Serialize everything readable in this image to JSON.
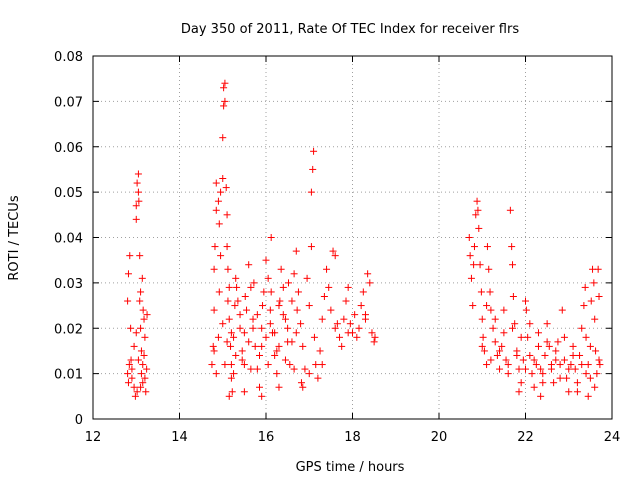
{
  "chart_data": {
    "type": "scatter",
    "title": "Day 350 of 2011, Rate Of TEC Index for receiver flrs",
    "xlabel": "GPS time / hours",
    "ylabel": "ROTI / TECUs",
    "xlim": [
      12,
      24
    ],
    "ylim": [
      0,
      0.08
    ],
    "xticks": [
      "12",
      "14",
      "16",
      "18",
      "20",
      "22",
      "24"
    ],
    "yticks": [
      "0",
      "0.01",
      "0.02",
      "0.03",
      "0.04",
      "0.05",
      "0.06",
      "0.07",
      "0.08"
    ],
    "grid": true,
    "marker": "+",
    "color": "#ff0000",
    "series": [
      {
        "name": "ROTI",
        "points": [
          [
            12.8,
            0.01
          ],
          [
            12.82,
            0.008
          ],
          [
            12.84,
            0.012
          ],
          [
            12.8,
            0.026
          ],
          [
            12.82,
            0.032
          ],
          [
            12.85,
            0.036
          ],
          [
            12.87,
            0.02
          ],
          [
            12.9,
            0.009
          ],
          [
            12.95,
            0.007
          ],
          [
            12.98,
            0.005
          ],
          [
            13.0,
            0.044
          ],
          [
            13.0,
            0.047
          ],
          [
            13.02,
            0.052
          ],
          [
            13.05,
            0.054
          ],
          [
            13.05,
            0.05
          ],
          [
            13.06,
            0.048
          ],
          [
            13.08,
            0.036
          ],
          [
            13.1,
            0.028
          ],
          [
            13.1,
            0.02
          ],
          [
            13.12,
            0.015
          ],
          [
            13.12,
            0.01
          ],
          [
            13.15,
            0.012
          ],
          [
            13.15,
            0.008
          ],
          [
            13.18,
            0.014
          ],
          [
            13.18,
            0.022
          ],
          [
            13.2,
            0.018
          ],
          [
            13.2,
            0.009
          ],
          [
            13.22,
            0.006
          ],
          [
            13.25,
            0.023
          ],
          [
            13.05,
            0.013
          ],
          [
            12.9,
            0.011
          ],
          [
            12.95,
            0.016
          ],
          [
            13.0,
            0.019
          ],
          [
            13.08,
            0.026
          ],
          [
            13.14,
            0.031
          ],
          [
            13.16,
            0.024
          ],
          [
            12.88,
            0.013
          ],
          [
            13.02,
            0.006
          ],
          [
            13.1,
            0.007
          ],
          [
            13.24,
            0.011
          ],
          [
            14.75,
            0.012
          ],
          [
            14.78,
            0.016
          ],
          [
            14.8,
            0.024
          ],
          [
            14.8,
            0.033
          ],
          [
            14.82,
            0.038
          ],
          [
            14.85,
            0.046
          ],
          [
            14.85,
            0.052
          ],
          [
            14.9,
            0.048
          ],
          [
            14.92,
            0.043
          ],
          [
            14.95,
            0.05
          ],
          [
            14.95,
            0.036
          ],
          [
            15.0,
            0.053
          ],
          [
            15.0,
            0.062
          ],
          [
            15.02,
            0.069
          ],
          [
            15.02,
            0.073
          ],
          [
            15.05,
            0.07
          ],
          [
            15.05,
            0.074
          ],
          [
            15.08,
            0.051
          ],
          [
            15.1,
            0.045
          ],
          [
            15.1,
            0.038
          ],
          [
            15.12,
            0.033
          ],
          [
            15.15,
            0.029
          ],
          [
            15.15,
            0.022
          ],
          [
            15.18,
            0.016
          ],
          [
            15.2,
            0.012
          ],
          [
            15.2,
            0.009
          ],
          [
            15.22,
            0.006
          ],
          [
            15.25,
            0.018
          ],
          [
            15.28,
            0.025
          ],
          [
            15.3,
            0.031
          ],
          [
            15.35,
            0.026
          ],
          [
            15.4,
            0.02
          ],
          [
            15.45,
            0.015
          ],
          [
            15.5,
            0.012
          ],
          [
            15.55,
            0.024
          ],
          [
            15.6,
            0.034
          ],
          [
            15.65,
            0.029
          ],
          [
            15.7,
            0.022
          ],
          [
            15.75,
            0.016
          ],
          [
            15.8,
            0.011
          ],
          [
            15.85,
            0.007
          ],
          [
            15.9,
            0.02
          ],
          [
            15.95,
            0.028
          ],
          [
            16.0,
            0.035
          ],
          [
            16.05,
            0.031
          ],
          [
            16.1,
            0.024
          ],
          [
            16.12,
            0.04
          ],
          [
            16.15,
            0.019
          ],
          [
            16.2,
            0.014
          ],
          [
            16.25,
            0.01
          ],
          [
            16.3,
            0.025
          ],
          [
            16.35,
            0.033
          ],
          [
            16.4,
            0.029
          ],
          [
            16.45,
            0.022
          ],
          [
            16.5,
            0.017
          ],
          [
            16.55,
            0.012
          ],
          [
            16.6,
            0.026
          ],
          [
            16.65,
            0.032
          ],
          [
            16.7,
            0.037
          ],
          [
            16.75,
            0.028
          ],
          [
            16.8,
            0.021
          ],
          [
            16.82,
            0.008
          ],
          [
            16.85,
            0.016
          ],
          [
            16.9,
            0.011
          ],
          [
            16.95,
            0.031
          ],
          [
            17.0,
            0.025
          ],
          [
            17.05,
            0.038
          ],
          [
            17.05,
            0.05
          ],
          [
            17.08,
            0.055
          ],
          [
            17.1,
            0.059
          ],
          [
            17.12,
            0.018
          ],
          [
            17.15,
            0.012
          ],
          [
            17.2,
            0.009
          ],
          [
            17.25,
            0.015
          ],
          [
            17.3,
            0.022
          ],
          [
            17.35,
            0.027
          ],
          [
            17.4,
            0.033
          ],
          [
            17.45,
            0.029
          ],
          [
            17.5,
            0.024
          ],
          [
            17.55,
            0.037
          ],
          [
            17.6,
            0.036
          ],
          [
            17.65,
            0.021
          ],
          [
            17.7,
            0.018
          ],
          [
            17.75,
            0.016
          ],
          [
            17.8,
            0.022
          ],
          [
            17.85,
            0.026
          ],
          [
            17.9,
            0.029
          ],
          [
            17.95,
            0.021
          ],
          [
            18.0,
            0.019
          ],
          [
            18.05,
            0.023
          ],
          [
            18.1,
            0.018
          ],
          [
            18.15,
            0.02
          ],
          [
            18.2,
            0.025
          ],
          [
            18.25,
            0.028
          ],
          [
            18.3,
            0.023
          ],
          [
            18.35,
            0.032
          ],
          [
            18.4,
            0.03
          ],
          [
            18.45,
            0.019
          ],
          [
            18.5,
            0.017
          ],
          [
            18.52,
            0.018
          ],
          [
            14.8,
            0.015
          ],
          [
            14.9,
            0.018
          ],
          [
            15.0,
            0.021
          ],
          [
            15.1,
            0.017
          ],
          [
            15.2,
            0.019
          ],
          [
            15.3,
            0.014
          ],
          [
            15.4,
            0.023
          ],
          [
            15.5,
            0.019
          ],
          [
            15.6,
            0.017
          ],
          [
            15.7,
            0.02
          ],
          [
            15.8,
            0.023
          ],
          [
            15.9,
            0.016
          ],
          [
            16.0,
            0.018
          ],
          [
            16.1,
            0.021
          ],
          [
            16.2,
            0.019
          ],
          [
            16.3,
            0.016
          ],
          [
            16.4,
            0.023
          ],
          [
            16.5,
            0.02
          ],
          [
            16.6,
            0.017
          ],
          [
            16.7,
            0.019
          ],
          [
            14.85,
            0.01
          ],
          [
            15.05,
            0.012
          ],
          [
            15.25,
            0.01
          ],
          [
            15.45,
            0.013
          ],
          [
            15.65,
            0.011
          ],
          [
            15.85,
            0.014
          ],
          [
            16.05,
            0.012
          ],
          [
            16.25,
            0.015
          ],
          [
            16.45,
            0.013
          ],
          [
            16.65,
            0.011
          ],
          [
            14.92,
            0.028
          ],
          [
            15.12,
            0.026
          ],
          [
            15.32,
            0.029
          ],
          [
            15.52,
            0.027
          ],
          [
            15.72,
            0.03
          ],
          [
            15.92,
            0.025
          ],
          [
            16.12,
            0.028
          ],
          [
            16.32,
            0.026
          ],
          [
            16.52,
            0.03
          ],
          [
            16.72,
            0.024
          ],
          [
            15.15,
            0.005
          ],
          [
            15.5,
            0.006
          ],
          [
            15.9,
            0.005
          ],
          [
            16.3,
            0.007
          ],
          [
            16.85,
            0.007
          ],
          [
            17.0,
            0.01
          ],
          [
            17.3,
            0.012
          ],
          [
            17.6,
            0.02
          ],
          [
            17.9,
            0.019
          ],
          [
            18.3,
            0.022
          ],
          [
            20.7,
            0.04
          ],
          [
            20.72,
            0.036
          ],
          [
            20.75,
            0.031
          ],
          [
            20.78,
            0.025
          ],
          [
            20.8,
            0.034
          ],
          [
            20.82,
            0.038
          ],
          [
            20.85,
            0.045
          ],
          [
            20.88,
            0.048
          ],
          [
            20.9,
            0.046
          ],
          [
            20.92,
            0.042
          ],
          [
            20.95,
            0.034
          ],
          [
            20.98,
            0.028
          ],
          [
            21.0,
            0.022
          ],
          [
            21.02,
            0.018
          ],
          [
            21.05,
            0.015
          ],
          [
            21.1,
            0.012
          ],
          [
            21.12,
            0.038
          ],
          [
            21.15,
            0.033
          ],
          [
            21.18,
            0.028
          ],
          [
            21.2,
            0.024
          ],
          [
            21.25,
            0.02
          ],
          [
            21.3,
            0.017
          ],
          [
            21.35,
            0.014
          ],
          [
            21.4,
            0.011
          ],
          [
            21.45,
            0.016
          ],
          [
            21.5,
            0.019
          ],
          [
            21.55,
            0.013
          ],
          [
            21.6,
            0.01
          ],
          [
            21.65,
            0.046
          ],
          [
            21.68,
            0.038
          ],
          [
            21.7,
            0.034
          ],
          [
            21.72,
            0.027
          ],
          [
            21.75,
            0.021
          ],
          [
            21.8,
            0.015
          ],
          [
            21.85,
            0.011
          ],
          [
            21.9,
            0.008
          ],
          [
            21.95,
            0.013
          ],
          [
            22.0,
            0.026
          ],
          [
            22.02,
            0.024
          ],
          [
            22.05,
            0.018
          ],
          [
            22.1,
            0.014
          ],
          [
            22.15,
            0.01
          ],
          [
            22.2,
            0.007
          ],
          [
            22.25,
            0.012
          ],
          [
            22.3,
            0.016
          ],
          [
            22.35,
            0.011
          ],
          [
            22.4,
            0.008
          ],
          [
            22.45,
            0.014
          ],
          [
            22.5,
            0.021
          ],
          [
            22.55,
            0.016
          ],
          [
            22.6,
            0.011
          ],
          [
            22.65,
            0.008
          ],
          [
            22.7,
            0.013
          ],
          [
            22.75,
            0.017
          ],
          [
            22.8,
            0.012
          ],
          [
            22.85,
            0.024
          ],
          [
            22.9,
            0.018
          ],
          [
            22.95,
            0.009
          ],
          [
            23.0,
            0.006
          ],
          [
            23.05,
            0.012
          ],
          [
            23.1,
            0.016
          ],
          [
            23.15,
            0.011
          ],
          [
            23.2,
            0.006
          ],
          [
            23.25,
            0.014
          ],
          [
            23.3,
            0.02
          ],
          [
            23.35,
            0.025
          ],
          [
            23.38,
            0.029
          ],
          [
            23.4,
            0.018
          ],
          [
            23.45,
            0.012
          ],
          [
            23.5,
            0.009
          ],
          [
            23.52,
            0.026
          ],
          [
            23.55,
            0.033
          ],
          [
            23.58,
            0.03
          ],
          [
            23.6,
            0.022
          ],
          [
            23.62,
            0.015
          ],
          [
            23.65,
            0.01
          ],
          [
            23.68,
            0.033
          ],
          [
            23.7,
            0.027
          ],
          [
            23.72,
            0.012
          ],
          [
            23.45,
            0.005
          ],
          [
            21.0,
            0.016
          ],
          [
            21.2,
            0.013
          ],
          [
            21.4,
            0.015
          ],
          [
            21.6,
            0.012
          ],
          [
            21.8,
            0.014
          ],
          [
            22.0,
            0.011
          ],
          [
            22.2,
            0.013
          ],
          [
            22.4,
            0.01
          ],
          [
            22.6,
            0.012
          ],
          [
            22.8,
            0.009
          ],
          [
            23.0,
            0.011
          ],
          [
            23.2,
            0.008
          ],
          [
            23.4,
            0.01
          ],
          [
            23.6,
            0.007
          ],
          [
            21.1,
            0.025
          ],
          [
            21.3,
            0.022
          ],
          [
            21.5,
            0.024
          ],
          [
            21.7,
            0.02
          ],
          [
            21.9,
            0.018
          ],
          [
            22.1,
            0.021
          ],
          [
            22.3,
            0.019
          ],
          [
            22.5,
            0.017
          ],
          [
            22.7,
            0.015
          ],
          [
            22.9,
            0.013
          ],
          [
            23.1,
            0.014
          ],
          [
            23.3,
            0.012
          ],
          [
            23.5,
            0.016
          ],
          [
            23.7,
            0.013
          ],
          [
            21.85,
            0.006
          ],
          [
            22.35,
            0.005
          ]
        ]
      }
    ]
  }
}
